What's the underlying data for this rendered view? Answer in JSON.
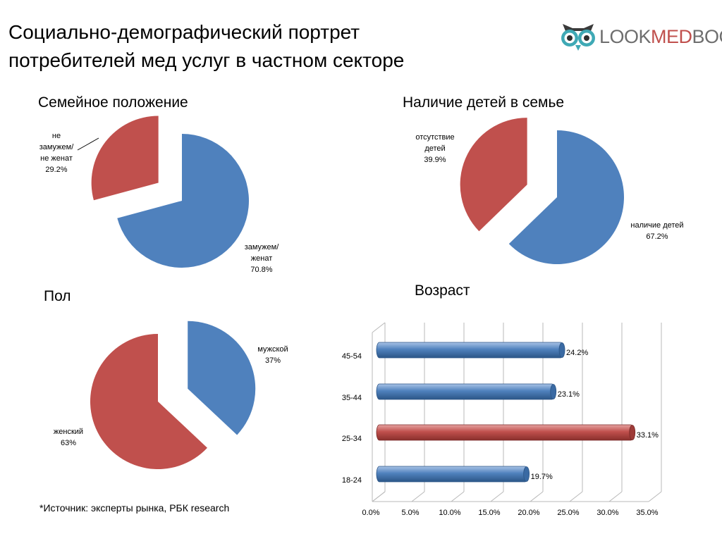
{
  "header": {
    "title_line1": "Социально-демографический портрет",
    "title_line2": "потребителей мед услуг в частном секторе",
    "logo": {
      "part1": "LOOK",
      "part2": "MED",
      "part3": "BOOK",
      "icon": "owl-icon"
    }
  },
  "sections": {
    "family": "Семейное положение",
    "children": "Наличие детей в семье",
    "gender": "Пол",
    "age": "Возраст"
  },
  "footer": {
    "source": "*Источник: эксперты рынка, РБК research"
  },
  "colors": {
    "blue": "#4f81bd",
    "red": "#c0504d",
    "grid": "#b8b8b8"
  },
  "chart_data": [
    {
      "type": "pie",
      "title": "Семейное положение",
      "slices": [
        {
          "label_lines": [
            "замужем/",
            "женат"
          ],
          "value_label": "70.8%",
          "value": 70.8,
          "color": "#4f81bd"
        },
        {
          "label_lines": [
            "не",
            "замужем/",
            "не женат"
          ],
          "value_label": "29.2%",
          "value": 29.2,
          "color": "#c0504d",
          "exploded": true
        }
      ]
    },
    {
      "type": "pie",
      "title": "Наличие детей в семье",
      "slices": [
        {
          "label_lines": [
            "наличие детей"
          ],
          "value_label": "67.2%",
          "value": 67.2,
          "color": "#4f81bd"
        },
        {
          "label_lines": [
            "отсутствие",
            "детей"
          ],
          "value_label": "39.9%",
          "value": 39.9,
          "color": "#c0504d",
          "exploded": true
        }
      ]
    },
    {
      "type": "pie",
      "title": "Пол",
      "slices": [
        {
          "label_lines": [
            "мужской"
          ],
          "value_label": "37%",
          "value": 37,
          "color": "#4f81bd",
          "exploded": true
        },
        {
          "label_lines": [
            "женский"
          ],
          "value_label": "63%",
          "value": 63,
          "color": "#c0504d"
        }
      ]
    },
    {
      "type": "bar",
      "orientation": "horizontal",
      "title": "Возраст",
      "categories": [
        "45-54",
        "35-44",
        "25-34",
        "18-24"
      ],
      "values": [
        24.2,
        23.1,
        33.1,
        19.7
      ],
      "value_labels": [
        "24.2%",
        "23.1%",
        "33.1%",
        "19.7%"
      ],
      "colors": [
        "#4f81bd",
        "#4f81bd",
        "#c0504d",
        "#4f81bd"
      ],
      "xlim": [
        0,
        35
      ],
      "x_ticks": [
        "0.0%",
        "5.0%",
        "10.0%",
        "15.0%",
        "20.0%",
        "25.0%",
        "30.0%",
        "35.0%"
      ],
      "grid": true
    }
  ]
}
